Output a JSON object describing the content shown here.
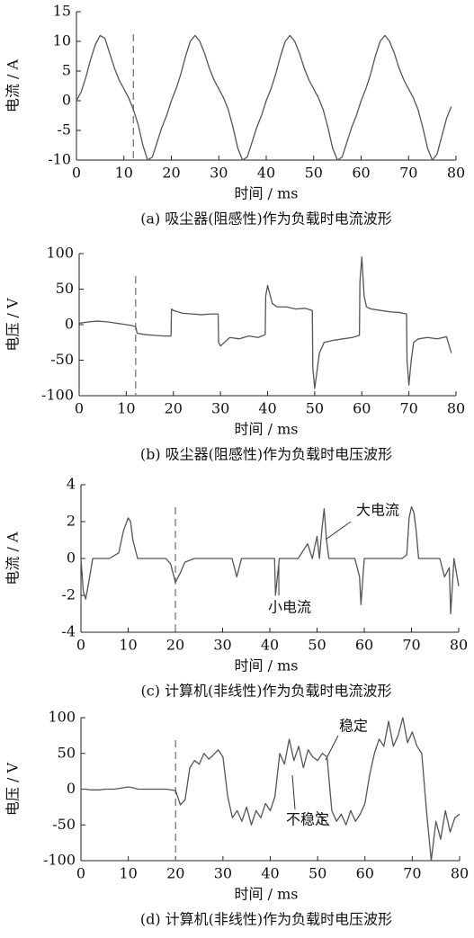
{
  "chart_data": [
    {
      "type": "line",
      "ylabel": "电流 / A",
      "xlabel": "时间 / ms",
      "caption": "(a)  吸尘器(阻感性)作为负载时电流波形",
      "color": "#555555",
      "vline": 12,
      "xlim": [
        0,
        80
      ],
      "xticks": [
        0,
        10,
        20,
        30,
        40,
        50,
        60,
        70,
        80
      ],
      "ylim": [
        -10,
        15
      ],
      "yticks": [
        -10,
        -5,
        0,
        5,
        10,
        15
      ],
      "x": [
        0,
        1,
        2,
        3,
        4,
        5,
        6,
        7,
        8,
        9,
        10,
        11,
        12,
        13,
        14,
        15,
        16,
        17,
        18,
        19,
        20,
        21,
        22,
        23,
        24,
        25,
        26,
        27,
        28,
        29,
        30,
        31,
        32,
        33,
        34,
        35,
        36,
        37,
        38,
        39,
        40,
        41,
        42,
        43,
        44,
        45,
        46,
        47,
        48,
        49,
        50,
        51,
        52,
        53,
        54,
        55,
        56,
        57,
        58,
        59,
        60,
        61,
        62,
        63,
        64,
        65,
        66,
        67,
        68,
        69,
        70,
        71,
        72,
        73,
        74,
        75,
        76,
        77,
        78,
        79
      ],
      "values": [
        0,
        1.5,
        4,
        7,
        9.5,
        11,
        10.5,
        8,
        5.5,
        3.5,
        2,
        0.5,
        -1.5,
        -4,
        -7.5,
        -10,
        -9.5,
        -7,
        -4.5,
        -2.5,
        0,
        2,
        4.5,
        7.5,
        10,
        11,
        10,
        8,
        5.5,
        3.5,
        2,
        0.5,
        -1.5,
        -4.5,
        -8,
        -10,
        -9.5,
        -7,
        -4.5,
        -2.5,
        0,
        2,
        4.5,
        7.5,
        10,
        11,
        10,
        8,
        5.5,
        3.5,
        2,
        0.5,
        -1.5,
        -4.5,
        -8,
        -10,
        -9.5,
        -7,
        -4.5,
        -2.5,
        0,
        2,
        4.5,
        7.5,
        10,
        11,
        10,
        8,
        5.5,
        3.5,
        2,
        0.5,
        -1.5,
        -4.5,
        -8,
        -10,
        -9,
        -6,
        -3,
        -1
      ]
    },
    {
      "type": "line",
      "ylabel": "电压 / V",
      "xlabel": "时间 / ms",
      "caption": "(b)  吸尘器(阻感性)作为负载时电压波形",
      "color": "#555555",
      "vline": 12,
      "xlim": [
        0,
        80
      ],
      "xticks": [
        0,
        10,
        20,
        30,
        40,
        50,
        60,
        70,
        80
      ],
      "ylim": [
        -100,
        100
      ],
      "yticks": [
        -100,
        -50,
        0,
        50,
        100
      ],
      "x": [
        0,
        2,
        4,
        6,
        8,
        10,
        11,
        12,
        12.3,
        14,
        16,
        18,
        19.5,
        19.6,
        20,
        22,
        24,
        26,
        28,
        29.5,
        29.6,
        30,
        32,
        34,
        36,
        38,
        39.5,
        39.6,
        40,
        41,
        42,
        44,
        46,
        48,
        49.5,
        49.6,
        50,
        51,
        52,
        54,
        56,
        58,
        59.5,
        59.6,
        60,
        60.5,
        61,
        62,
        64,
        66,
        68,
        69.5,
        69.6,
        70,
        70.5,
        71,
        72,
        74,
        76,
        78,
        79
      ],
      "values": [
        2,
        4,
        5,
        4,
        2,
        0,
        -1,
        -3,
        -12,
        -14,
        -15,
        -16,
        -16,
        22,
        20,
        16,
        15,
        14,
        15,
        15,
        -25,
        -30,
        -18,
        -20,
        -16,
        -18,
        -14,
        40,
        55,
        30,
        25,
        25,
        22,
        23,
        20,
        -60,
        -90,
        -40,
        -25,
        -22,
        -20,
        -18,
        -15,
        60,
        95,
        40,
        25,
        22,
        20,
        18,
        17,
        15,
        -50,
        -85,
        -50,
        -25,
        -20,
        -18,
        -20,
        -17,
        -40
      ]
    },
    {
      "type": "line",
      "ylabel": "电流 / A",
      "xlabel": "时间 / ms",
      "caption": "(c)  计算机(非线性)作为负载时电流波形",
      "color": "#555555",
      "vline": 20,
      "xlim": [
        0,
        80
      ],
      "xticks": [
        0,
        10,
        20,
        30,
        40,
        50,
        60,
        70,
        80
      ],
      "ylim": [
        -4,
        4
      ],
      "yticks": [
        -4,
        -2,
        0,
        2,
        4
      ],
      "annotations": [
        "大电流",
        "小电流"
      ],
      "x": [
        0,
        0.5,
        1,
        1.5,
        2.5,
        4,
        6,
        8,
        9,
        10,
        10.5,
        11,
        12,
        14,
        16,
        18,
        19,
        20,
        21,
        22,
        24,
        26,
        28,
        30,
        32,
        33,
        34,
        36,
        38,
        40,
        41,
        41.2,
        42,
        44,
        46,
        48,
        49,
        50,
        50.5,
        51,
        51.5,
        52,
        52.5,
        54,
        56,
        58,
        59,
        59.3,
        60,
        62,
        64,
        66,
        68,
        69,
        69.5,
        70,
        70.5,
        71,
        71.5,
        72,
        74,
        76,
        77,
        78,
        78.3,
        79,
        80
      ],
      "values": [
        0,
        -1.8,
        -2.2,
        -1.5,
        0,
        0,
        0,
        0.3,
        1.5,
        2.2,
        2,
        1,
        0,
        0,
        0,
        0,
        -0.3,
        -1.3,
        -0.8,
        -0.2,
        0,
        0,
        0,
        0,
        0,
        -1,
        0,
        0,
        0,
        0,
        0,
        -2,
        0,
        0,
        0,
        0.8,
        0,
        1.2,
        0,
        1.5,
        2.7,
        1,
        0,
        0,
        0,
        0,
        -1,
        -2.5,
        0,
        0,
        0,
        0,
        0,
        0.2,
        2.2,
        2.8,
        2.5,
        1.5,
        0,
        0,
        0,
        0,
        -1,
        -0.5,
        -3,
        0,
        -1.5
      ]
    },
    {
      "type": "line",
      "ylabel": "电压 / V",
      "xlabel": "时间 / ms",
      "caption": "(d) 计算机(非线性)作为负载时电压波形",
      "color": "#555555",
      "vline": 20,
      "xlim": [
        0,
        80
      ],
      "xticks": [
        0,
        10,
        20,
        30,
        40,
        50,
        60,
        70,
        80
      ],
      "ylim": [
        -100,
        100
      ],
      "yticks": [
        -100,
        -50,
        0,
        50,
        100
      ],
      "annotations": [
        "稳定",
        "不稳定"
      ],
      "x": [
        0,
        1,
        2,
        3,
        4,
        5,
        6,
        7,
        8,
        9,
        10,
        11,
        12,
        13,
        14,
        15,
        16,
        17,
        18,
        19,
        20,
        21,
        22,
        23,
        24,
        25,
        26,
        27,
        28,
        29,
        30,
        31,
        32,
        33,
        34,
        35,
        36,
        37,
        38,
        39,
        40,
        41,
        42,
        43,
        44,
        45,
        46,
        47,
        48,
        49,
        50,
        51,
        52,
        53,
        54,
        55,
        56,
        57,
        58,
        59,
        60,
        61,
        62,
        63,
        64,
        65,
        66,
        67,
        68,
        69,
        70,
        71,
        72,
        73,
        74,
        75,
        76,
        77,
        78,
        79,
        80
      ],
      "values": [
        0,
        0,
        -1,
        -1,
        -1,
        0,
        0,
        0,
        1,
        2,
        3,
        2,
        0,
        0,
        0,
        0,
        0,
        0,
        0,
        -1,
        -2,
        -22,
        -15,
        30,
        40,
        35,
        50,
        42,
        48,
        55,
        45,
        -10,
        -40,
        -30,
        -45,
        -25,
        -50,
        -30,
        -40,
        -20,
        -30,
        -10,
        50,
        35,
        70,
        40,
        60,
        30,
        55,
        45,
        40,
        50,
        45,
        -30,
        -45,
        -35,
        -50,
        -30,
        -45,
        -35,
        -20,
        20,
        50,
        70,
        60,
        95,
        60,
        75,
        100,
        65,
        80,
        60,
        50,
        -30,
        -100,
        -45,
        -70,
        -30,
        -60,
        -40,
        -35
      ]
    }
  ]
}
